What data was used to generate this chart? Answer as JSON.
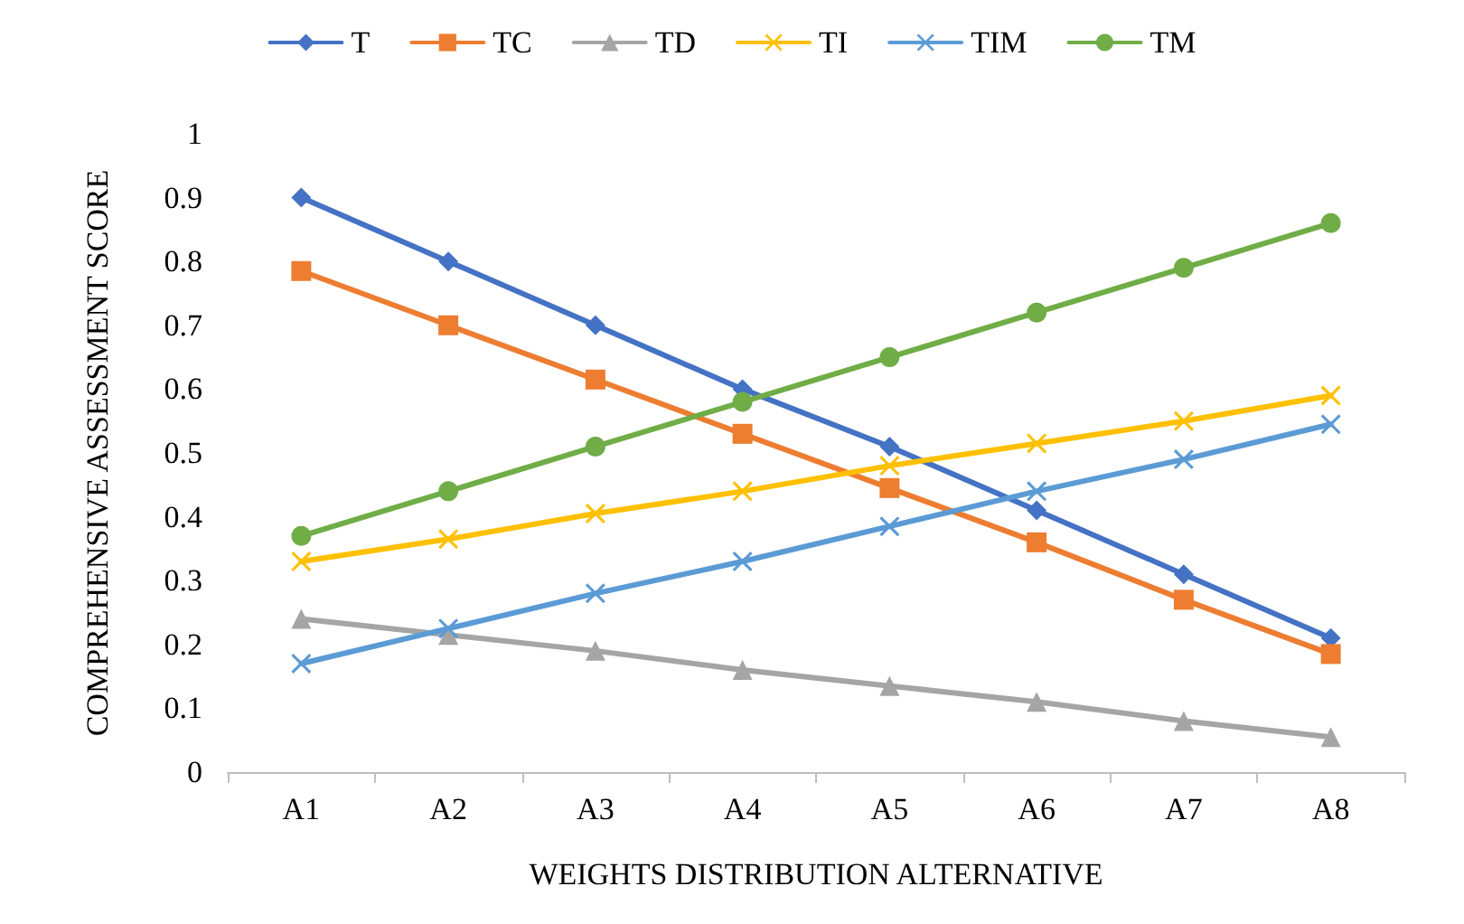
{
  "chart_data": {
    "type": "line",
    "xlabel": "WEIGHTS DISTRIBUTION ALTERNATIVE",
    "ylabel": "COMPREHENSIVE ASSESSMENT SCORE",
    "categories": [
      "A1",
      "A2",
      "A3",
      "A4",
      "A5",
      "A6",
      "A7",
      "A8"
    ],
    "series": [
      {
        "name": "T",
        "color": "#4472c4",
        "marker": "diamond",
        "values": [
          0.9,
          0.8,
          0.7,
          0.6,
          0.51,
          0.41,
          0.31,
          0.21
        ]
      },
      {
        "name": "TC",
        "color": "#ed7d31",
        "marker": "square",
        "values": [
          0.785,
          0.7,
          0.615,
          0.53,
          0.445,
          0.36,
          0.27,
          0.185
        ]
      },
      {
        "name": "TD",
        "color": "#a5a5a5",
        "marker": "triangle",
        "values": [
          0.24,
          0.215,
          0.19,
          0.16,
          0.135,
          0.11,
          0.08,
          0.055
        ]
      },
      {
        "name": "TI",
        "color": "#ffc000",
        "marker": "cross",
        "values": [
          0.33,
          0.365,
          0.405,
          0.44,
          0.48,
          0.515,
          0.55,
          0.59
        ]
      },
      {
        "name": "TIM",
        "color": "#5b9bd5",
        "marker": "cross",
        "values": [
          0.17,
          0.225,
          0.28,
          0.33,
          0.385,
          0.44,
          0.49,
          0.545
        ]
      },
      {
        "name": "TM",
        "color": "#70ad47",
        "marker": "circle",
        "values": [
          0.37,
          0.44,
          0.51,
          0.58,
          0.65,
          0.72,
          0.79,
          0.86
        ]
      }
    ],
    "ylim": [
      0,
      1
    ],
    "yticks": [
      0,
      0.1,
      0.2,
      0.3,
      0.4,
      0.5,
      0.6,
      0.7,
      0.8,
      0.9,
      1
    ],
    "grid": false,
    "legend": "top",
    "line_style": "solid"
  }
}
